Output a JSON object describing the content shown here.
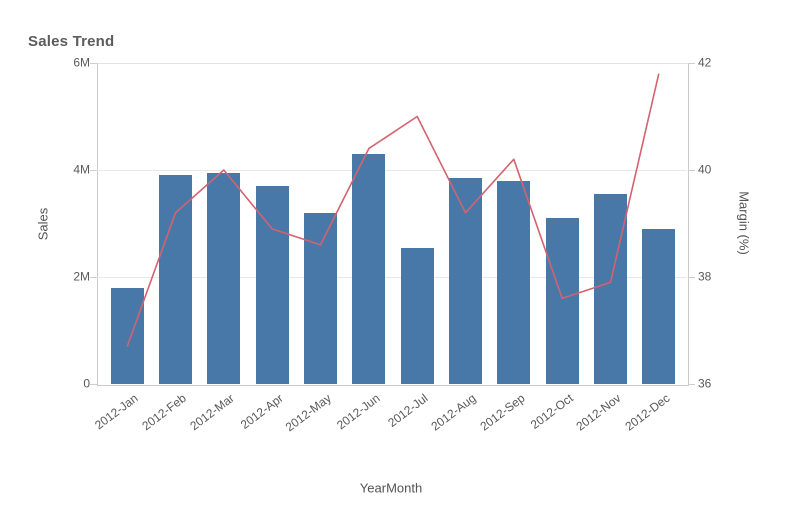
{
  "title": "Sales Trend",
  "colors": {
    "bar": "#4878a8",
    "line": "#d2636f",
    "grid": "#e8e8e8",
    "axis": "#cccccc",
    "text": "#595959",
    "title_text": "#5c5c5c"
  },
  "chart_data": {
    "type": "combo",
    "title": "Sales Trend",
    "categories": [
      "2012-Jan",
      "2012-Feb",
      "2012-Mar",
      "2012-Apr",
      "2012-May",
      "2012-Jun",
      "2012-Jul",
      "2012-Aug",
      "2012-Sep",
      "2012-Oct",
      "2012-Nov",
      "2012-Dec"
    ],
    "series": [
      {
        "name": "Sales",
        "type": "bar",
        "axis": "left",
        "unit": "millions",
        "values": [
          1.8,
          3.9,
          3.95,
          3.7,
          3.2,
          4.3,
          2.55,
          3.85,
          3.8,
          3.1,
          3.55,
          2.9
        ]
      },
      {
        "name": "Margin (%)",
        "type": "line",
        "axis": "right",
        "unit": "percent",
        "values": [
          36.7,
          39.2,
          40.0,
          38.9,
          38.6,
          40.4,
          41.0,
          39.2,
          40.2,
          37.6,
          37.9,
          41.8
        ]
      }
    ],
    "xlabel": "YearMonth",
    "left_axis": {
      "label": "Sales",
      "ticks": [
        "0",
        "2M",
        "4M",
        "6M"
      ],
      "range_m": [
        0,
        6
      ]
    },
    "right_axis": {
      "label": "Margin (%)",
      "ticks": [
        "36",
        "38",
        "40",
        "42"
      ],
      "range": [
        36,
        42
      ]
    },
    "grid": true,
    "legend": "none"
  }
}
